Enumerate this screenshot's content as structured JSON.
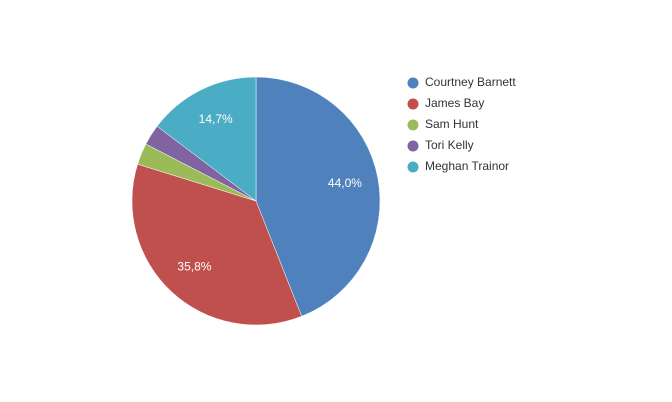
{
  "chart_data": {
    "type": "pie",
    "categories": [
      "Courtney Barnett",
      "James Bay",
      "Sam Hunt",
      "Tori Kelly",
      "Meghan Trainor"
    ],
    "values": [
      44.0,
      35.8,
      2.8,
      2.7,
      14.7
    ],
    "value_labels": [
      "44,0%",
      "35,8%",
      null,
      null,
      "14,7%"
    ],
    "colors": [
      "#4f81bd",
      "#c0504d",
      "#9bbb59",
      "#8064a2",
      "#4bacc6"
    ],
    "legend": "right"
  }
}
